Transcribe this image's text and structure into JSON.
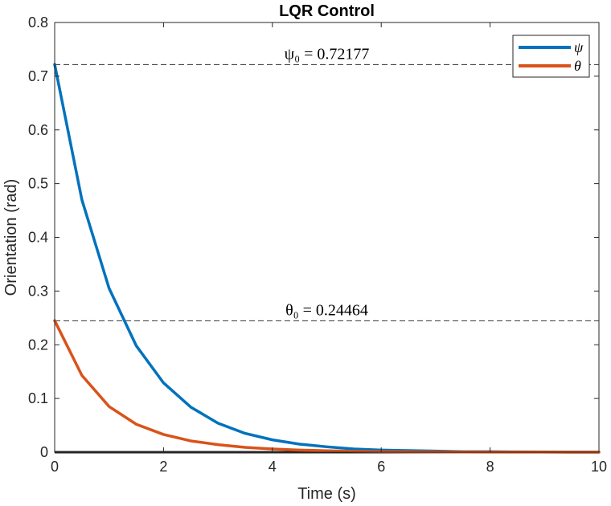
{
  "chart_data": {
    "type": "line",
    "title": "LQR Control",
    "xlabel": "Time (s)",
    "ylabel": "Orientation (rad)",
    "xlim": [
      0,
      10
    ],
    "ylim": [
      0,
      0.8
    ],
    "xticks": [
      0,
      2,
      4,
      6,
      8,
      10
    ],
    "xtick_labels": [
      "0",
      "2",
      "4",
      "6",
      "8",
      "10"
    ],
    "yticks": [
      0,
      0.1,
      0.2,
      0.3,
      0.4,
      0.5,
      0.6,
      0.7,
      0.8
    ],
    "ytick_labels": [
      "0",
      "0.1",
      "0.2",
      "0.3",
      "0.4",
      "0.5",
      "0.6",
      "0.7",
      "0.8"
    ],
    "grid": false,
    "legend_position": "top-right",
    "series": [
      {
        "name": "ψ",
        "color": "#0072BD",
        "x": [
          0,
          0.5,
          1,
          1.5,
          2,
          2.5,
          3,
          3.5,
          4,
          4.5,
          5,
          5.5,
          6,
          6.5,
          7,
          7.5,
          8,
          8.5,
          9,
          9.5,
          10
        ],
        "y": [
          0.722,
          0.47,
          0.305,
          0.198,
          0.129,
          0.084,
          0.054,
          0.035,
          0.023,
          0.015,
          0.01,
          0.006,
          0.004,
          0.003,
          0.002,
          0.001,
          0.001,
          0.0005,
          0.0003,
          0.0002,
          0.0001
        ]
      },
      {
        "name": "θ",
        "color": "#D95319",
        "x": [
          0,
          0.5,
          1,
          1.5,
          2,
          2.5,
          3,
          3.5,
          4,
          4.5,
          5,
          5.5,
          6,
          6.5,
          7,
          7.5,
          8,
          8.5,
          9,
          9.5,
          10
        ],
        "y": [
          0.245,
          0.143,
          0.085,
          0.052,
          0.033,
          0.021,
          0.014,
          0.009,
          0.006,
          0.004,
          0.0026,
          0.0017,
          0.0011,
          0.0007,
          0.0005,
          0.0003,
          0.0002,
          0.0001,
          0.0001,
          0.0,
          0.0
        ]
      }
    ],
    "zero_line": {
      "y": 0,
      "color": "#262626"
    },
    "reference_lines": [
      {
        "y": 0.72177,
        "label_text": "ψ₀ = 0.72177",
        "label_x": 5
      },
      {
        "y": 0.24464,
        "label_text": "θ₀ = 0.24464",
        "label_x": 5
      }
    ]
  }
}
